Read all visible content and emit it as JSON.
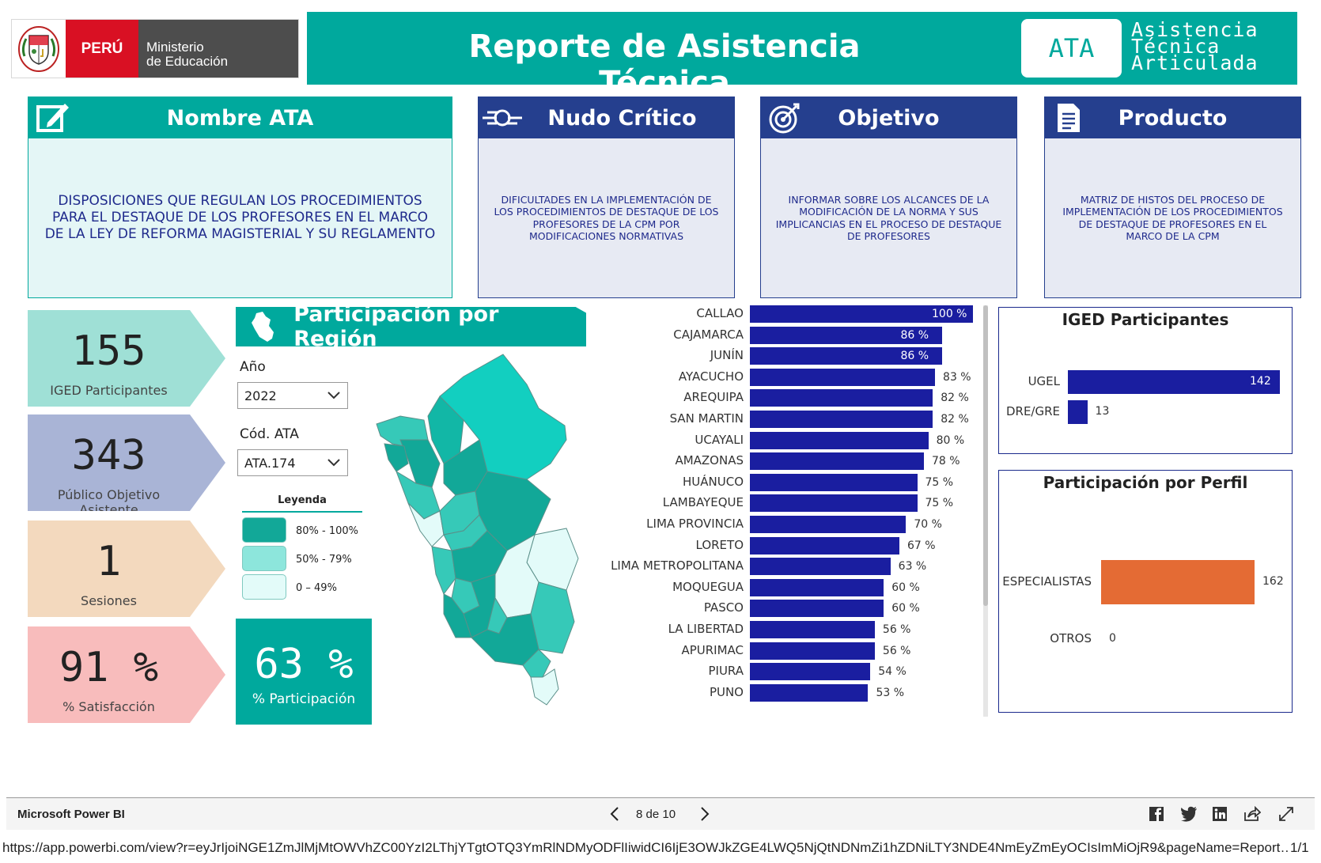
{
  "header": {
    "peru_label": "PERÚ",
    "ministry_line1": "Ministerio",
    "ministry_line2": "de Educación",
    "title": "Reporte de Asistencia Técnica",
    "ata_badge": "ATA",
    "ata_line1": "Asistencia",
    "ata_line2": "Técnica",
    "ata_line3": "Articulada"
  },
  "cards": [
    {
      "title": "Nombre ATA",
      "icon": "edit-icon",
      "text": "DISPOSICIONES QUE REGULAN LOS PROCEDIMIENTOS PARA EL DESTAQUE DE LOS PROFESORES EN EL MARCO DE LA LEY DE REFORMA MAGISTERIAL Y SU REGLAMENTO"
    },
    {
      "title": "Nudo Crítico",
      "icon": "knot-icon",
      "text": "DIFICULTADES EN LA IMPLEMENTACIÓN DE LOS PROCEDIMIENTOS DE DESTAQUE DE LOS PROFESORES DE LA CPM POR MODIFICACIONES NORMATIVAS"
    },
    {
      "title": "Objetivo",
      "icon": "target-icon",
      "text": "INFORMAR SOBRE LOS ALCANCES DE LA MODIFICACIÓN DE LA NORMA Y SUS IMPLICANCIAS EN EL PROCESO DE DESTAQUE DE PROFESORES"
    },
    {
      "title": "Producto",
      "icon": "document-icon",
      "text": "MATRIZ DE HISTOS DEL PROCESO DE IMPLEMENTACIÓN DE LOS PROCEDIMIENTOS DE DESTAQUE DE PROFESORES EN EL MARCO DE LA CPM"
    }
  ],
  "kpis": [
    {
      "value": "155",
      "label": "IGED Participantes",
      "color": "#9fe0d6"
    },
    {
      "value": "343",
      "label": "Público Objetivo Asistente",
      "color": "#a9b4d6"
    },
    {
      "value": "1",
      "label": "Sesiones",
      "color": "#f3d9be"
    },
    {
      "value": "91 %",
      "label": "% Satisfacción",
      "color": "#f8bcbc"
    }
  ],
  "region_panel": {
    "title": "Participación por Región",
    "year_label": "Año",
    "year_value": "2022",
    "code_label": "Cód. ATA",
    "code_value": "ATA.174",
    "legend_title": "Leyenda",
    "legend": [
      {
        "label": "80% - 100%",
        "color": "#12a898"
      },
      {
        "label": "50% - 79%",
        "color": "#8de6dc"
      },
      {
        "label": "0 – 49%",
        "color": "#e3fbf9"
      }
    ],
    "participation_value": "63 %",
    "participation_label": "% Participación"
  },
  "chart_data": [
    {
      "type": "bar",
      "orientation": "horizontal",
      "categories": [
        "CALLAO",
        "CAJAMARCA",
        "JUNÍN",
        "AYACUCHO",
        "AREQUIPA",
        "SAN MARTIN",
        "UCAYALI",
        "AMAZONAS",
        "HUÁNUCO",
        "LAMBAYEQUE",
        "LIMA PROVINCIA",
        "LORETO",
        "LIMA METROPOLITANA",
        "MOQUEGUA",
        "PASCO",
        "LA LIBERTAD",
        "APURIMAC",
        "PIURA",
        "PUNO"
      ],
      "values": [
        100,
        86,
        86,
        83,
        82,
        82,
        80,
        78,
        75,
        75,
        70,
        67,
        63,
        60,
        60,
        56,
        56,
        54,
        53
      ],
      "labels": [
        "100 %",
        "86 %",
        "86 %",
        "83 %",
        "82 %",
        "82 %",
        "80 %",
        "78 %",
        "75 %",
        "75 %",
        "70 %",
        "67 %",
        "63 %",
        "60 %",
        "60 %",
        "56 %",
        "56 %",
        "54 %",
        "53 %"
      ],
      "color": "#1a1ea0"
    },
    {
      "type": "bar",
      "orientation": "horizontal",
      "title": "IGED Participantes",
      "categories": [
        "UGEL",
        "DRE/GRE"
      ],
      "values": [
        142,
        13
      ],
      "color": "#1a1ea0"
    },
    {
      "type": "bar",
      "orientation": "horizontal",
      "title": "Participación por Perfil",
      "categories": [
        "ESPECIALISTAS",
        "OTROS"
      ],
      "values": [
        162,
        0
      ],
      "color": "#e46b34"
    }
  ],
  "footer": {
    "brand": "Microsoft Power BI",
    "page_indicator": "8 de 10",
    "url": "https://app.powerbi.com/view?r=eyJrIjoiNGE1ZmJlMjMtOWVhZC00YzI2LThjYTgtOTQ3YmRlNDMyODFlIiwidCI6IjE3OWJkZGE4LWQ5NjQtNDNmZi1hZDNiLTY3NDE4NmEyZmEyOCIsImMiOjR9&pageName=Report…",
    "page_count": "1/1"
  }
}
